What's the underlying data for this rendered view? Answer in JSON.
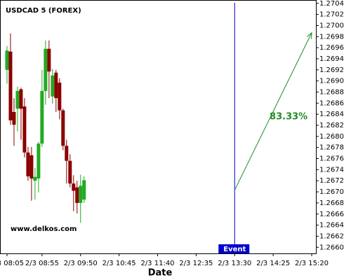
{
  "chart_data": {
    "type": "candlestick",
    "title": "USDCAD 5 (FOREX)",
    "watermark": "www.delkos.com",
    "x_label": "Date",
    "x": [
      "2/3 08:05",
      "2/3 08:10",
      "2/3 08:15",
      "2/3 08:20",
      "2/3 08:25",
      "2/3 08:30",
      "2/3 08:35",
      "2/3 08:40",
      "2/3 08:45",
      "2/3 08:50",
      "2/3 08:55",
      "2/3 09:00",
      "2/3 09:05",
      "2/3 09:10",
      "2/3 09:15",
      "2/3 09:20",
      "2/3 09:25",
      "2/3 09:30",
      "2/3 09:35",
      "2/3 09:40",
      "2/3 09:45",
      "2/3 09:50",
      "2/3 09:55"
    ],
    "open": [
      1.2692,
      1.26953,
      1.26844,
      1.2685,
      1.26885,
      1.26854,
      1.26771,
      1.26766,
      1.2672,
      1.26724,
      1.26787,
      1.26882,
      1.26958,
      1.26872,
      1.26915,
      1.26897,
      1.26847,
      1.26783,
      1.26756,
      1.26715,
      1.26708,
      1.2668,
      1.26686
    ],
    "high": [
      1.26963,
      1.26986,
      1.26869,
      1.2689,
      1.26888,
      1.26869,
      1.26781,
      1.26781,
      1.26743,
      1.2679,
      1.2692,
      1.26973,
      1.26973,
      1.26922,
      1.2692,
      1.26905,
      1.2685,
      1.26794,
      1.26768,
      1.2673,
      1.2672,
      1.26731,
      1.26728
    ],
    "low": [
      1.26895,
      1.26821,
      1.26783,
      1.26809,
      1.26794,
      1.26762,
      1.2672,
      1.26684,
      1.26686,
      1.26699,
      1.26781,
      1.26857,
      1.26869,
      1.26859,
      1.26844,
      1.26831,
      1.26775,
      1.26715,
      1.26708,
      1.26665,
      1.26661,
      1.26644,
      1.2668
    ],
    "close": [
      1.26955,
      1.26829,
      1.26821,
      1.26882,
      1.2685,
      1.26771,
      1.26728,
      1.26724,
      1.26727,
      1.26787,
      1.26882,
      1.26958,
      1.26917,
      1.2691,
      1.26869,
      1.26847,
      1.26783,
      1.26756,
      1.26715,
      1.26702,
      1.2668,
      1.26711,
      1.26721
    ],
    "up_color": "#22aa22",
    "down_color": "#8b0000",
    "xlim": [
      "2/3 07:55",
      "2/3 15:26"
    ],
    "xticks": [
      "2/3 08:05",
      "2/3 08:55",
      "2/3 09:50",
      "2/3 10:45",
      "2/3 11:40",
      "2/3 12:35",
      "2/3 13:30",
      "2/3 14:25",
      "2/3 15:20"
    ],
    "ylim": [
      1.26589,
      1.27046
    ],
    "yticks": [
      {
        "value": 1.266,
        "label": "1.2660"
      },
      {
        "value": 1.2662,
        "label": "1.2662"
      },
      {
        "value": 1.2664,
        "label": "1.2664"
      },
      {
        "value": 1.2666,
        "label": "1.2666"
      },
      {
        "value": 1.2668,
        "label": "1.2668"
      },
      {
        "value": 1.267,
        "label": "1.2670"
      },
      {
        "value": 1.2672,
        "label": "1.2672"
      },
      {
        "value": 1.2674,
        "label": "1.2674"
      },
      {
        "value": 1.2676,
        "label": "1.2676"
      },
      {
        "value": 1.2678,
        "label": "1.2678"
      },
      {
        "value": 1.268,
        "label": "1.2680"
      },
      {
        "value": 1.2682,
        "label": "1.2682"
      },
      {
        "value": 1.2684,
        "label": "1.2684"
      },
      {
        "value": 1.2686,
        "label": "1.2686"
      },
      {
        "value": 1.2688,
        "label": "1.2688"
      },
      {
        "value": 1.269,
        "label": "1.2690"
      },
      {
        "value": 1.2692,
        "label": "1.2692"
      },
      {
        "value": 1.2694,
        "label": "1.2694"
      },
      {
        "value": 1.2696,
        "label": "1.2696"
      },
      {
        "value": 1.2698,
        "label": "1.2698"
      },
      {
        "value": 1.27,
        "label": "1.2700"
      },
      {
        "value": 1.2702,
        "label": "1.2702"
      },
      {
        "value": 1.2704,
        "label": "1.2704"
      }
    ],
    "event": {
      "label": "Event",
      "x": "2/3 13:30",
      "color": "#0000cc"
    },
    "arrow": {
      "x": [
        "2/3 13:30",
        "2/3 15:20"
      ],
      "y": [
        1.26703,
        1.26987
      ],
      "label": "83.33%",
      "color": "#228b22"
    }
  }
}
